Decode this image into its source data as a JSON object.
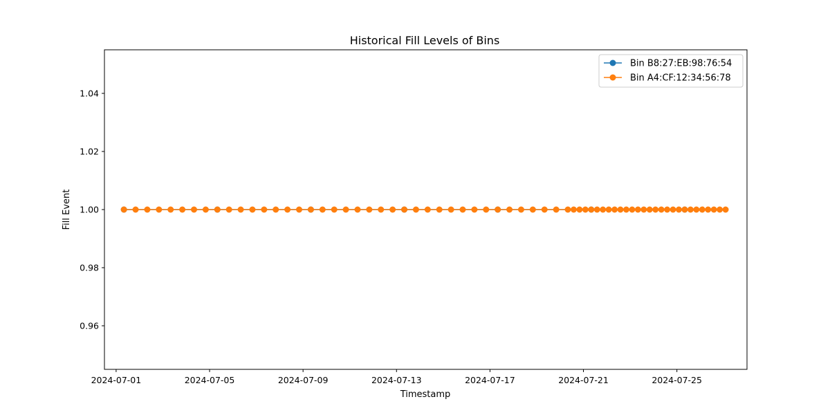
{
  "chart_data": {
    "type": "line",
    "title": "Historical Fill Levels of Bins",
    "xlabel": "Timestamp",
    "ylabel": "Fill Event",
    "xlim": [
      "2024-06-30T12:00",
      "2024-07-28T00:00"
    ],
    "ylim": [
      0.945,
      1.055
    ],
    "x_ticks": [
      "2024-07-01",
      "2024-07-05",
      "2024-07-09",
      "2024-07-13",
      "2024-07-17",
      "2024-07-21",
      "2024-07-25"
    ],
    "y_ticks": [
      "0.96",
      "0.98",
      "1.00",
      "1.02",
      "1.04"
    ],
    "y_tick_values": [
      0.96,
      0.98,
      1.0,
      1.02,
      1.04
    ],
    "grid": false,
    "legend_position": "top-right",
    "series": [
      {
        "name": "Bin B8:27:EB:98:76:54",
        "color": "#1f77b4",
        "x": [
          "2024-07-01T08:00",
          "2024-07-05T08:00",
          "2024-07-09T08:00",
          "2024-07-13T08:00",
          "2024-07-17T08:00",
          "2024-07-21T08:00",
          "2024-07-25T08:00"
        ],
        "values": [
          1,
          1,
          1,
          1,
          1,
          1,
          1
        ]
      },
      {
        "name": "Bin A4:CF:12:34:56:78",
        "color": "#ff7f0e",
        "x": [
          "2024-07-01T08:00",
          "2024-07-01T20:00",
          "2024-07-02T08:00",
          "2024-07-02T20:00",
          "2024-07-03T08:00",
          "2024-07-03T20:00",
          "2024-07-04T08:00",
          "2024-07-04T20:00",
          "2024-07-05T08:00",
          "2024-07-05T20:00",
          "2024-07-06T08:00",
          "2024-07-06T20:00",
          "2024-07-07T08:00",
          "2024-07-07T20:00",
          "2024-07-08T08:00",
          "2024-07-08T20:00",
          "2024-07-09T08:00",
          "2024-07-09T20:00",
          "2024-07-10T08:00",
          "2024-07-10T20:00",
          "2024-07-11T08:00",
          "2024-07-11T20:00",
          "2024-07-12T08:00",
          "2024-07-12T20:00",
          "2024-07-13T08:00",
          "2024-07-13T20:00",
          "2024-07-14T08:00",
          "2024-07-14T20:00",
          "2024-07-15T08:00",
          "2024-07-15T20:00",
          "2024-07-16T08:00",
          "2024-07-16T20:00",
          "2024-07-17T08:00",
          "2024-07-17T20:00",
          "2024-07-18T08:00",
          "2024-07-18T20:00",
          "2024-07-19T08:00",
          "2024-07-19T20:00",
          "2024-07-20T08:00",
          "2024-07-20T14:00",
          "2024-07-20T20:00",
          "2024-07-21T02:00",
          "2024-07-21T08:00",
          "2024-07-21T14:00",
          "2024-07-21T20:00",
          "2024-07-22T02:00",
          "2024-07-22T08:00",
          "2024-07-22T14:00",
          "2024-07-22T20:00",
          "2024-07-23T02:00",
          "2024-07-23T08:00",
          "2024-07-23T14:00",
          "2024-07-23T20:00",
          "2024-07-24T02:00",
          "2024-07-24T08:00",
          "2024-07-24T14:00",
          "2024-07-24T20:00",
          "2024-07-25T02:00",
          "2024-07-25T08:00",
          "2024-07-25T14:00",
          "2024-07-25T20:00",
          "2024-07-26T02:00",
          "2024-07-26T08:00",
          "2024-07-26T14:00",
          "2024-07-26T20:00",
          "2024-07-27T02:00"
        ],
        "values": [
          1,
          1,
          1,
          1,
          1,
          1,
          1,
          1,
          1,
          1,
          1,
          1,
          1,
          1,
          1,
          1,
          1,
          1,
          1,
          1,
          1,
          1,
          1,
          1,
          1,
          1,
          1,
          1,
          1,
          1,
          1,
          1,
          1,
          1,
          1,
          1,
          1,
          1,
          1,
          1,
          1,
          1,
          1,
          1,
          1,
          1,
          1,
          1,
          1,
          1,
          1,
          1,
          1,
          1,
          1,
          1,
          1,
          1,
          1,
          1,
          1,
          1,
          1,
          1,
          1,
          1
        ]
      }
    ]
  }
}
